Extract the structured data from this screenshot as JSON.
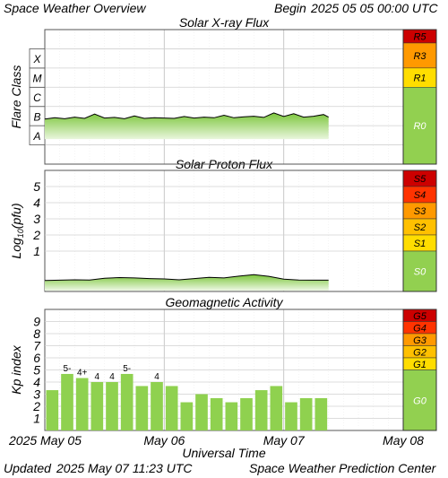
{
  "header": {
    "title": "Space Weather Overview",
    "begin_label": "Begin",
    "begin_value": "2025 05 05 00:00 UTC"
  },
  "footer": {
    "updated_label": "Updated",
    "updated_value": "2025 May 07 11:23 UTC",
    "credit": "Space Weather Prediction Center"
  },
  "time_axis": {
    "label": "Universal Time",
    "start": "2025-05-05T00:00Z",
    "end": "2025-05-08T00:00Z",
    "data_end": "2025-05-07T09:00Z",
    "ticks": [
      {
        "date": "2025-05-05",
        "label": "2025 May 05"
      },
      {
        "date": "2025-05-06",
        "label": "May 06"
      },
      {
        "date": "2025-05-07",
        "label": "May 07"
      },
      {
        "date": "2025-05-08",
        "label": "May 08"
      }
    ]
  },
  "colors": {
    "fill_green": "#8fd14f",
    "scale_green": "#92d050",
    "r1": "#ffdd00",
    "r2": "#ffc000",
    "r3": "#ff9900",
    "r4": "#ff3300",
    "r5": "#cc0000",
    "grid": "#d8d8d8",
    "line": "#000000"
  },
  "chart_data": [
    {
      "id": "xray",
      "type": "line",
      "title": "Solar X-ray Flux",
      "ylabel": "Flare Class",
      "y_scale": "log",
      "y_unit": "W/m^2",
      "ylim": [
        1e-09,
        0.01
      ],
      "class_labels": [
        {
          "label": "A",
          "value": 1e-08
        },
        {
          "label": "B",
          "value": 1e-07
        },
        {
          "label": "C",
          "value": 1e-06
        },
        {
          "label": "M",
          "value": 1e-05
        },
        {
          "label": "X",
          "value": 0.0001
        }
      ],
      "scale": [
        {
          "label": "R5",
          "color": "#cc0000",
          "from": 0.002,
          "to": 0.01
        },
        {
          "label": "R3",
          "color": "#ff9900",
          "from": 0.0001,
          "to": 0.002
        },
        {
          "label": "R1",
          "color": "#ffdd00",
          "from": 1e-05,
          "to": 0.0001
        },
        {
          "label": "R0",
          "color": "#92d050",
          "from": 1e-09,
          "to": 1e-05
        }
      ],
      "series": [
        {
          "x_hours": [
            0,
            2,
            4,
            6,
            8,
            10,
            12,
            14,
            16,
            18,
            20,
            22,
            24,
            26,
            28,
            30,
            32,
            34,
            36,
            38,
            40,
            42,
            44,
            46,
            48,
            50,
            52,
            54,
            56,
            57
          ],
          "values": [
            2.2e-07,
            2.6e-07,
            2.3e-07,
            2.8e-07,
            2.4e-07,
            4e-07,
            2.5e-07,
            2.7e-07,
            2.3e-07,
            3.2e-07,
            2.4e-07,
            2.6e-07,
            2.5e-07,
            2.4e-07,
            3e-07,
            2.5e-07,
            2.8e-07,
            2.6e-07,
            3.5e-07,
            2.6e-07,
            2.9e-07,
            3.1e-07,
            2.7e-07,
            4.6e-07,
            3e-07,
            4.2e-07,
            2.8e-07,
            3.1e-07,
            3.8e-07,
            2.8e-07
          ]
        }
      ]
    },
    {
      "id": "proton",
      "type": "line",
      "title": "Solar Proton Flux",
      "ylabel": "Log10(pfu)",
      "ylabel_main": "Log",
      "ylabel_sub": "10",
      "ylabel_rest": "(pfu)",
      "ylim": [
        -1.5,
        6
      ],
      "y_ticks": [
        1,
        2,
        3,
        4,
        5
      ],
      "scale": [
        {
          "label": "S5",
          "color": "#cc0000",
          "from": 5,
          "to": 6
        },
        {
          "label": "S4",
          "color": "#ff3300",
          "from": 4,
          "to": 5
        },
        {
          "label": "S3",
          "color": "#ff9900",
          "from": 3,
          "to": 4
        },
        {
          "label": "S2",
          "color": "#ffc000",
          "from": 2,
          "to": 3
        },
        {
          "label": "S1",
          "color": "#ffdd00",
          "from": 1,
          "to": 2
        },
        {
          "label": "S0",
          "color": "#92d050",
          "from": -1.5,
          "to": 1
        }
      ],
      "series": [
        {
          "x_hours": [
            0,
            3,
            6,
            9,
            12,
            15,
            18,
            21,
            24,
            27,
            30,
            33,
            36,
            39,
            42,
            45,
            48,
            51,
            54,
            57
          ],
          "values": [
            -0.82,
            -0.8,
            -0.78,
            -0.79,
            -0.68,
            -0.64,
            -0.66,
            -0.7,
            -0.72,
            -0.78,
            -0.7,
            -0.62,
            -0.66,
            -0.55,
            -0.46,
            -0.56,
            -0.74,
            -0.79,
            -0.8,
            -0.8
          ]
        }
      ]
    },
    {
      "id": "kp",
      "type": "bar",
      "title": "Geomagnetic Activity",
      "ylabel": "Kp index",
      "ylim": [
        0,
        10
      ],
      "y_ticks": [
        1,
        2,
        3,
        4,
        5,
        6,
        7,
        8,
        9
      ],
      "bar_hours": 3,
      "scale": [
        {
          "label": "G5",
          "color": "#cc0000",
          "from": 9,
          "to": 10
        },
        {
          "label": "G4",
          "color": "#ff3300",
          "from": 8,
          "to": 9
        },
        {
          "label": "G3",
          "color": "#ff9900",
          "from": 7,
          "to": 8
        },
        {
          "label": "G2",
          "color": "#ffc000",
          "from": 6,
          "to": 7
        },
        {
          "label": "G1",
          "color": "#ffdd00",
          "from": 5,
          "to": 6
        },
        {
          "label": "G0",
          "color": "#92d050",
          "from": 0,
          "to": 5
        }
      ],
      "values": [
        3.33,
        4.67,
        4.33,
        4.0,
        4.0,
        4.67,
        3.67,
        4.0,
        3.67,
        2.33,
        3.0,
        2.67,
        2.33,
        2.67,
        3.33,
        3.67,
        2.33,
        2.67,
        2.67
      ],
      "bar_labels": [
        "",
        "5-",
        "4+",
        "4",
        "4",
        "5-",
        "",
        "4",
        "",
        "",
        "",
        "",
        "",
        "",
        "",
        "",
        "",
        "",
        ""
      ]
    }
  ]
}
